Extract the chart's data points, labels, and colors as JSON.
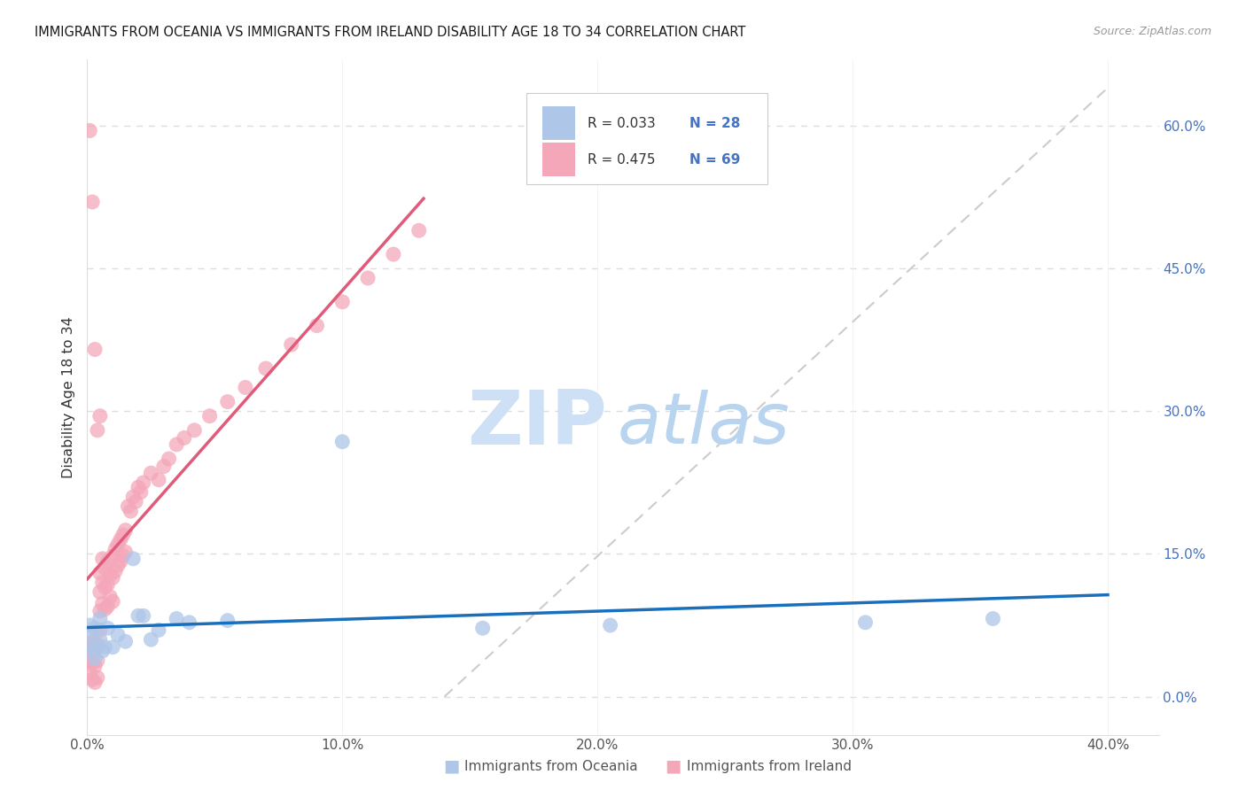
{
  "title": "IMMIGRANTS FROM OCEANIA VS IMMIGRANTS FROM IRELAND DISABILITY AGE 18 TO 34 CORRELATION CHART",
  "source": "Source: ZipAtlas.com",
  "ylabel": "Disability Age 18 to 34",
  "legend_labels": [
    "Immigrants from Oceania",
    "Immigrants from Ireland"
  ],
  "legend_R": [
    "R = 0.033",
    "R = 0.475"
  ],
  "legend_N": [
    "N = 28",
    "N = 69"
  ],
  "xlim": [
    0.0,
    0.42
  ],
  "ylim": [
    -0.04,
    0.67
  ],
  "plot_ylim": [
    0.0,
    0.65
  ],
  "xticks": [
    0.0,
    0.1,
    0.2,
    0.3,
    0.4
  ],
  "xtick_labels": [
    "0.0%",
    "10.0%",
    "20.0%",
    "30.0%",
    "40.0%"
  ],
  "yticks_right": [
    0.0,
    0.15,
    0.3,
    0.45,
    0.6
  ],
  "ytick_labels_right": [
    "0.0%",
    "15.0%",
    "30.0%",
    "45.0%",
    "60.0%"
  ],
  "color_oceania": "#aec6e8",
  "color_ireland": "#f4a7b9",
  "trendline_oceania": "#1a6fbc",
  "trendline_ireland": "#e05a7a",
  "background_color": "#ffffff",
  "oceania_x": [
    0.001,
    0.001,
    0.002,
    0.002,
    0.003,
    0.003,
    0.004,
    0.005,
    0.005,
    0.006,
    0.007,
    0.008,
    0.01,
    0.012,
    0.015,
    0.018,
    0.02,
    0.022,
    0.025,
    0.028,
    0.035,
    0.04,
    0.055,
    0.1,
    0.155,
    0.205,
    0.305,
    0.355
  ],
  "oceania_y": [
    0.075,
    0.055,
    0.068,
    0.048,
    0.072,
    0.04,
    0.052,
    0.082,
    0.06,
    0.048,
    0.052,
    0.072,
    0.052,
    0.065,
    0.058,
    0.145,
    0.085,
    0.085,
    0.06,
    0.07,
    0.082,
    0.078,
    0.08,
    0.268,
    0.072,
    0.075,
    0.078,
    0.082
  ],
  "ireland_x": [
    0.001,
    0.001,
    0.001,
    0.002,
    0.002,
    0.002,
    0.003,
    0.003,
    0.003,
    0.004,
    0.004,
    0.004,
    0.005,
    0.005,
    0.005,
    0.005,
    0.006,
    0.006,
    0.006,
    0.007,
    0.007,
    0.007,
    0.008,
    0.008,
    0.008,
    0.009,
    0.009,
    0.01,
    0.01,
    0.01,
    0.011,
    0.011,
    0.012,
    0.012,
    0.013,
    0.013,
    0.014,
    0.014,
    0.015,
    0.015,
    0.016,
    0.017,
    0.018,
    0.019,
    0.02,
    0.021,
    0.022,
    0.025,
    0.028,
    0.03,
    0.032,
    0.035,
    0.038,
    0.042,
    0.048,
    0.055,
    0.062,
    0.07,
    0.08,
    0.09,
    0.1,
    0.11,
    0.12,
    0.13,
    0.001,
    0.002,
    0.003,
    0.004,
    0.005
  ],
  "ireland_y": [
    0.052,
    0.038,
    0.025,
    0.058,
    0.035,
    0.018,
    0.05,
    0.032,
    0.015,
    0.055,
    0.038,
    0.02,
    0.13,
    0.11,
    0.09,
    0.07,
    0.145,
    0.12,
    0.098,
    0.135,
    0.115,
    0.092,
    0.142,
    0.118,
    0.095,
    0.128,
    0.105,
    0.148,
    0.125,
    0.1,
    0.155,
    0.132,
    0.16,
    0.138,
    0.165,
    0.142,
    0.17,
    0.148,
    0.175,
    0.152,
    0.2,
    0.195,
    0.21,
    0.205,
    0.22,
    0.215,
    0.225,
    0.235,
    0.228,
    0.242,
    0.25,
    0.265,
    0.272,
    0.28,
    0.295,
    0.31,
    0.325,
    0.345,
    0.37,
    0.39,
    0.415,
    0.44,
    0.465,
    0.49,
    0.595,
    0.52,
    0.365,
    0.28,
    0.295
  ]
}
